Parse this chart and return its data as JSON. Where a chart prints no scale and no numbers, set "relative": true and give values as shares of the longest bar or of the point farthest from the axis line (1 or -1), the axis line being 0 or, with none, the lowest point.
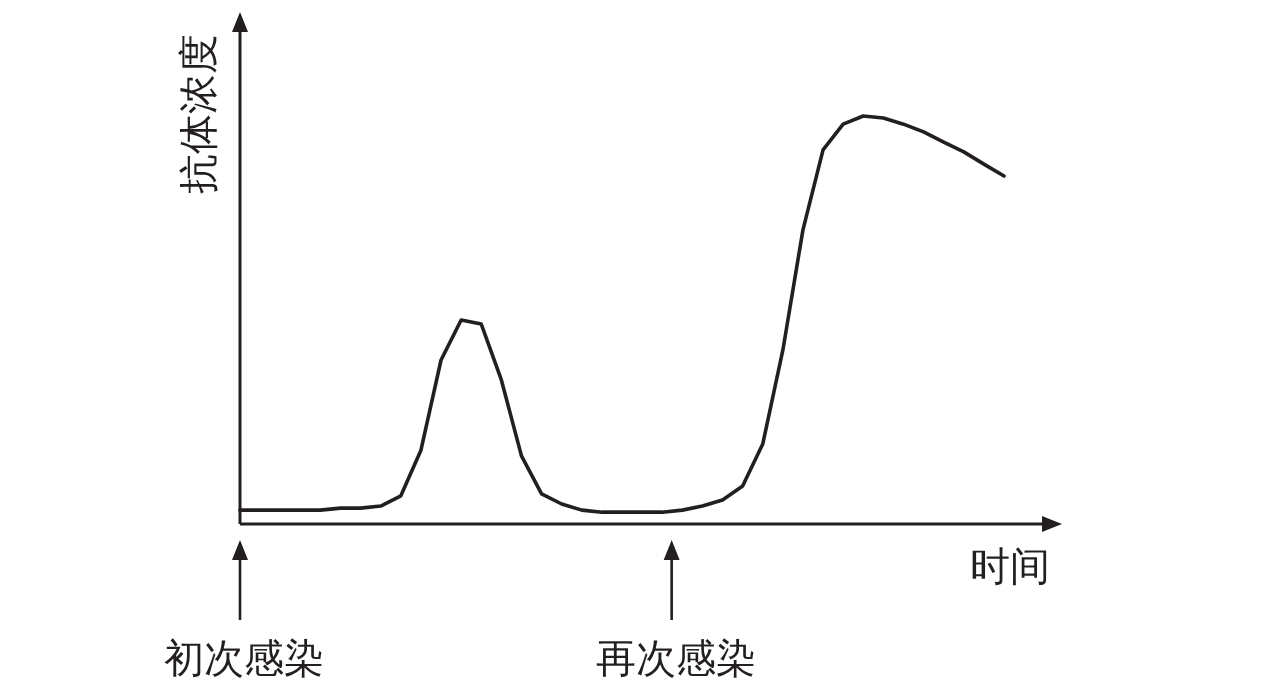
{
  "chart_data": {
    "type": "line",
    "relative": true,
    "xlabel": "时间",
    "ylabel": "抗体浓度",
    "categories": [
      null,
      null,
      null,
      null,
      null,
      null,
      null,
      null,
      null,
      null,
      null,
      null,
      null,
      null,
      null,
      null,
      null,
      null,
      null,
      null,
      null,
      null,
      null,
      null,
      null,
      null,
      null,
      null,
      null,
      null,
      null,
      null,
      null,
      null,
      null,
      null,
      null,
      null,
      null
    ],
    "series": [
      {
        "color": "#231f20",
        "values": [
          0.034,
          0.034,
          0.034,
          0.034,
          0.034,
          0.039,
          0.039,
          0.044,
          0.069,
          0.181,
          0.402,
          0.5,
          0.49,
          0.353,
          0.167,
          0.074,
          0.049,
          0.034,
          0.029,
          0.029,
          0.029,
          0.029,
          0.034,
          0.044,
          0.059,
          0.093,
          0.196,
          0.426,
          0.721,
          0.917,
          0.98,
          1,
          0.995,
          0.98,
          0.961,
          0.936,
          0.912,
          0.882,
          0.853
        ]
      }
    ],
    "annotations": [
      "初次感染",
      "再次感染"
    ],
    "marker": "none",
    "line_style": "solid"
  }
}
